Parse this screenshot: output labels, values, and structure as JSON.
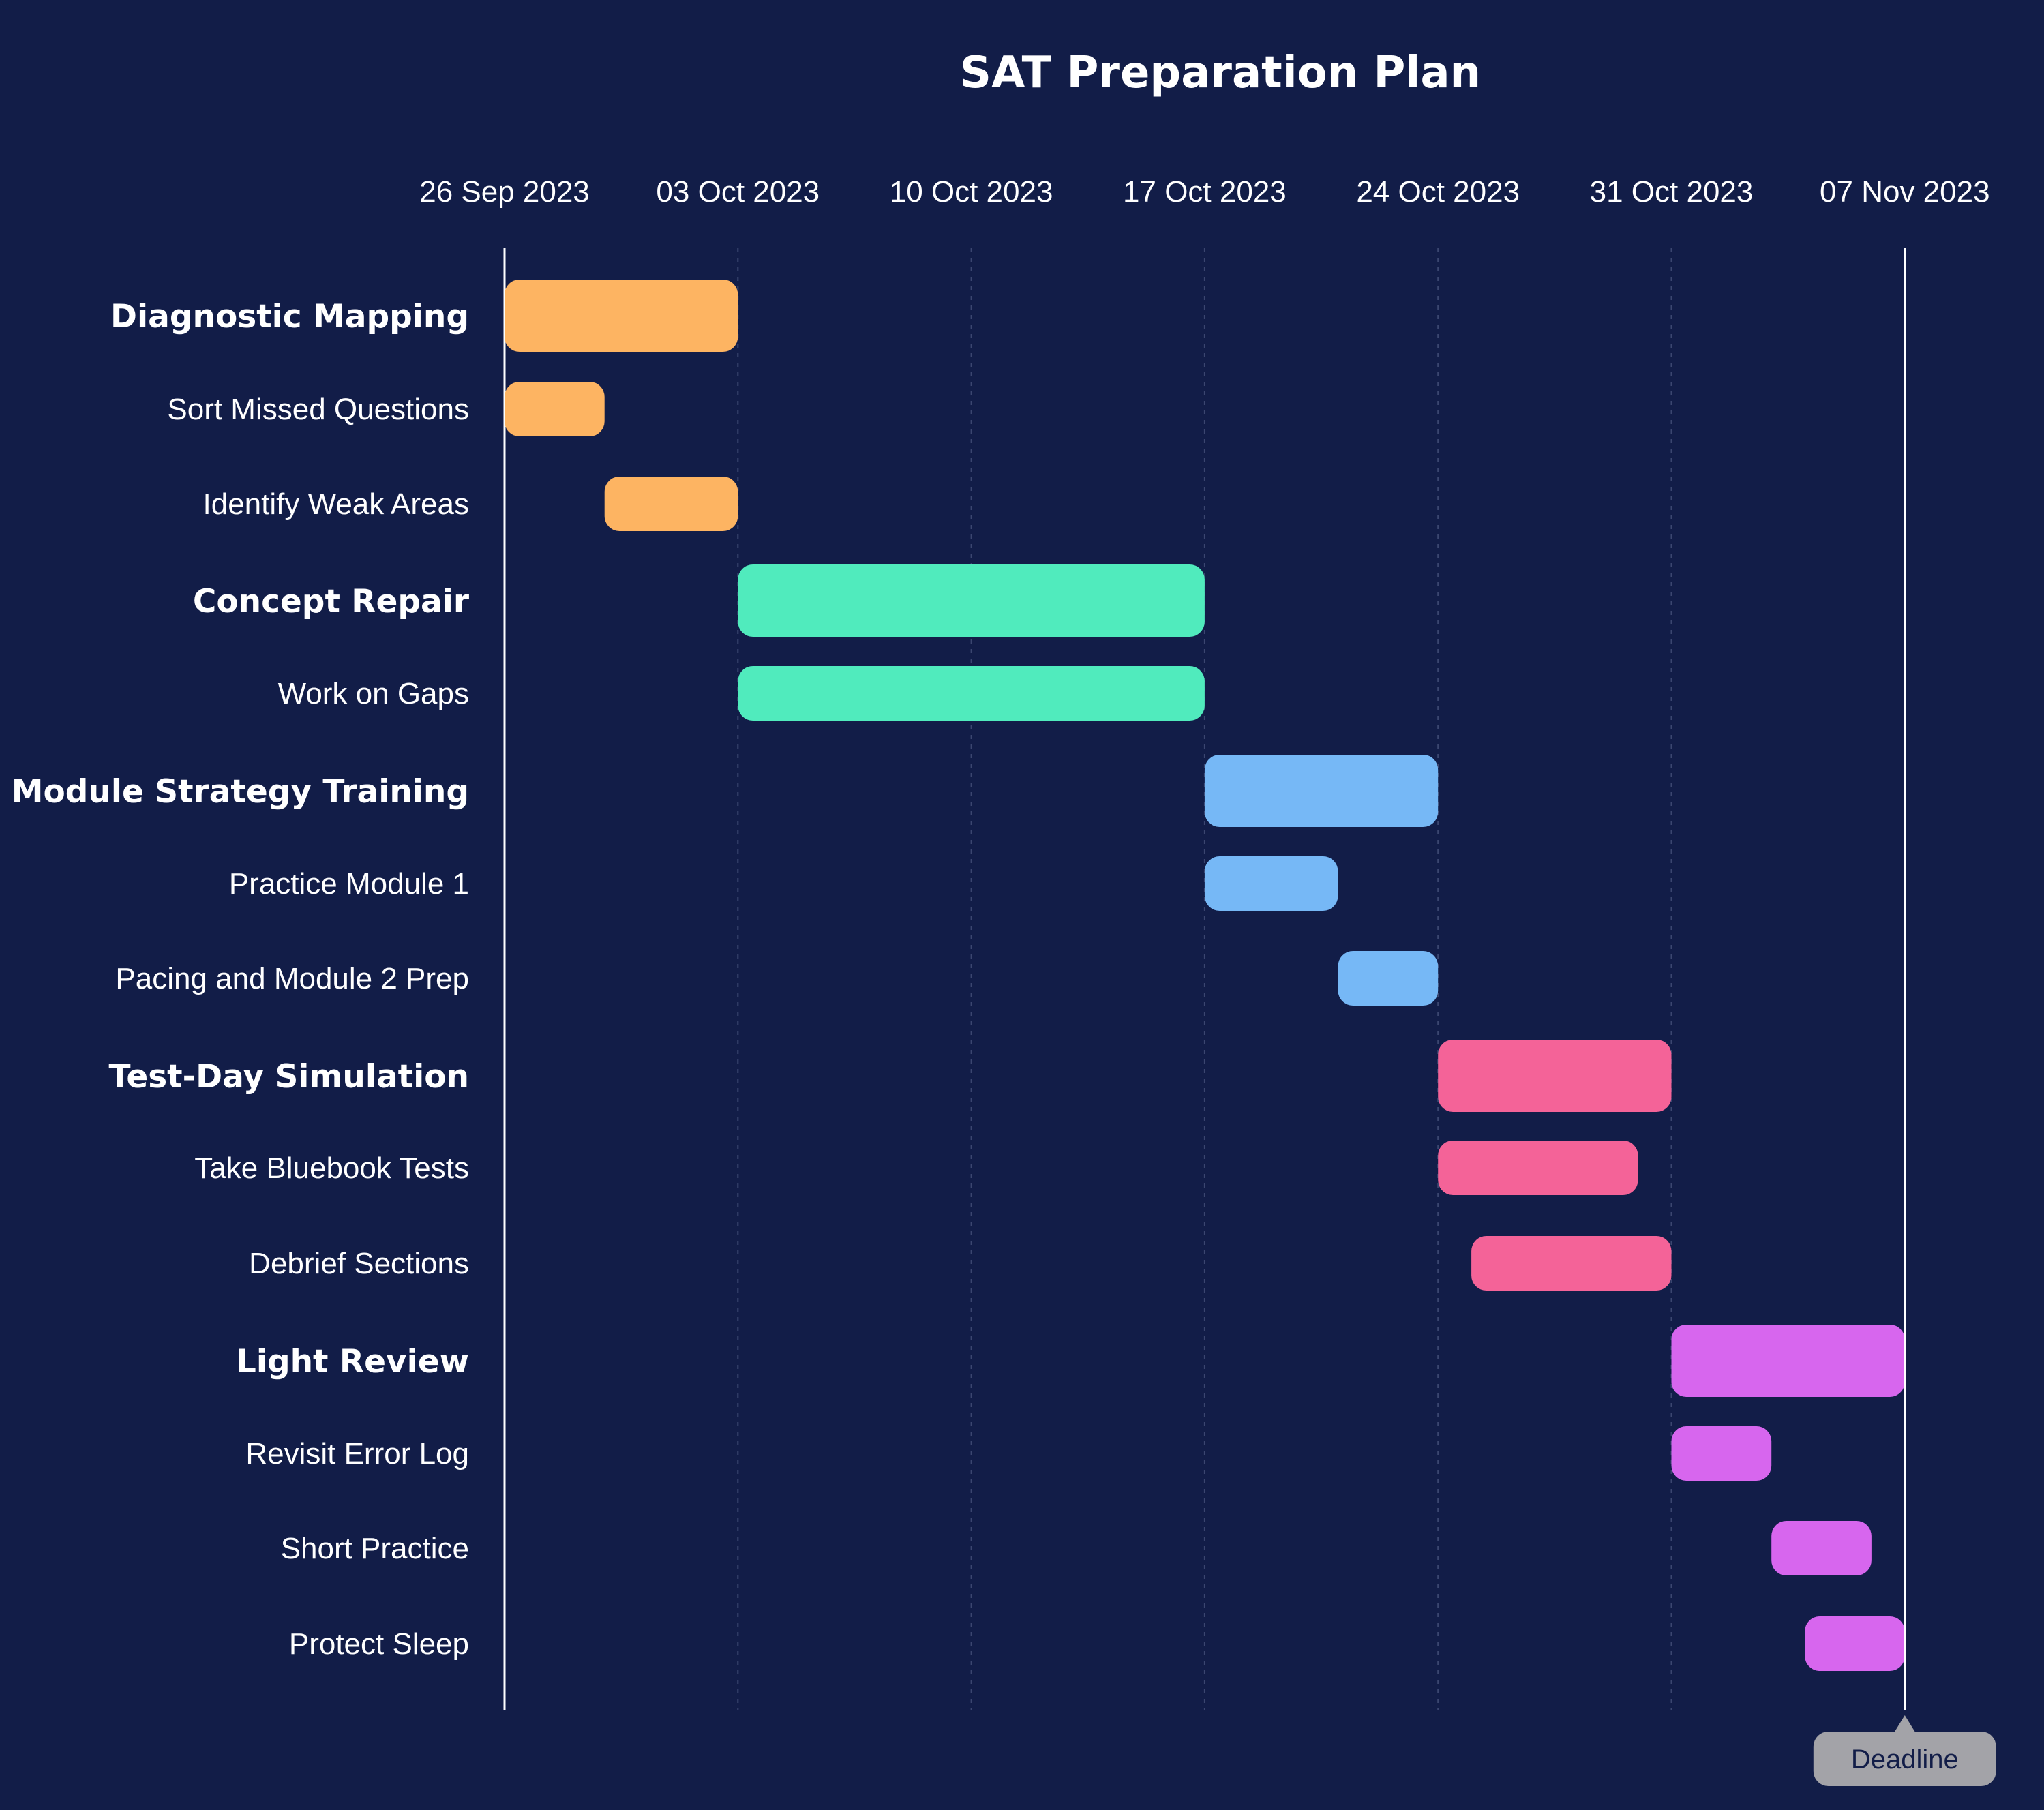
{
  "chart_data": {
    "type": "gantt",
    "title": "SAT Preparation Plan",
    "x_axis": {
      "range": [
        "2023-09-26",
        "2023-11-08"
      ],
      "ticks": [
        {
          "date": "2023-09-26",
          "label": "26 Sep 2023"
        },
        {
          "date": "2023-10-03",
          "label": "03 Oct 2023"
        },
        {
          "date": "2023-10-10",
          "label": "10 Oct 2023"
        },
        {
          "date": "2023-10-17",
          "label": "17 Oct 2023"
        },
        {
          "date": "2023-10-24",
          "label": "24 Oct 2023"
        },
        {
          "date": "2023-10-31",
          "label": "31 Oct 2023"
        },
        {
          "date": "2023-11-07",
          "label": "07 Nov 2023"
        }
      ],
      "grid": true,
      "position": "top"
    },
    "rows": [
      {
        "label": "Diagnostic Mapping",
        "kind": "group",
        "start": "2023-09-26",
        "end": "2023-10-02",
        "color": "#fdb462"
      },
      {
        "label": "Sort Missed Questions",
        "kind": "task",
        "start": "2023-09-26",
        "end": "2023-09-28",
        "color": "#fdb462"
      },
      {
        "label": "Identify Weak Areas",
        "kind": "task",
        "start": "2023-09-29",
        "end": "2023-10-02",
        "color": "#fdb462"
      },
      {
        "label": "Concept Repair",
        "kind": "group",
        "start": "2023-10-03",
        "end": "2023-10-16",
        "color": "#50ebbd"
      },
      {
        "label": "Work on Gaps",
        "kind": "task",
        "start": "2023-10-03",
        "end": "2023-10-16",
        "color": "#50ebbd"
      },
      {
        "label": "Module Strategy Training",
        "kind": "group",
        "start": "2023-10-17",
        "end": "2023-10-23",
        "color": "#76b8f6"
      },
      {
        "label": "Practice Module 1",
        "kind": "task",
        "start": "2023-10-17",
        "end": "2023-10-20",
        "color": "#76b8f6"
      },
      {
        "label": "Pacing and Module 2 Prep",
        "kind": "task",
        "start": "2023-10-21",
        "end": "2023-10-23",
        "color": "#76b8f6"
      },
      {
        "label": "Test-Day Simulation",
        "kind": "group",
        "start": "2023-10-24",
        "end": "2023-10-30",
        "color": "#f46398"
      },
      {
        "label": "Take Bluebook Tests",
        "kind": "task",
        "start": "2023-10-24",
        "end": "2023-10-29",
        "color": "#f46398"
      },
      {
        "label": "Debrief Sections",
        "kind": "task",
        "start": "2023-10-25",
        "end": "2023-10-30",
        "color": "#f46398"
      },
      {
        "label": "Light Review",
        "kind": "group",
        "start": "2023-10-31",
        "end": "2023-11-06",
        "color": "#d766ee"
      },
      {
        "label": "Revisit Error Log",
        "kind": "task",
        "start": "2023-10-31",
        "end": "2023-11-02",
        "color": "#d766ee"
      },
      {
        "label": "Short Practice",
        "kind": "task",
        "start": "2023-11-03",
        "end": "2023-11-05",
        "color": "#d766ee"
      },
      {
        "label": "Protect Sleep",
        "kind": "task",
        "start": "2023-11-04",
        "end": "2023-11-06",
        "color": "#d766ee"
      }
    ],
    "markers": [
      {
        "label": "Deadline",
        "date": "2023-11-06"
      }
    ],
    "colors": {
      "background": "#121d48",
      "text": "#ffffff",
      "grid": "#3b4670",
      "marker_line": "#ffffff",
      "marker_badge": "#a3a3a8"
    }
  }
}
